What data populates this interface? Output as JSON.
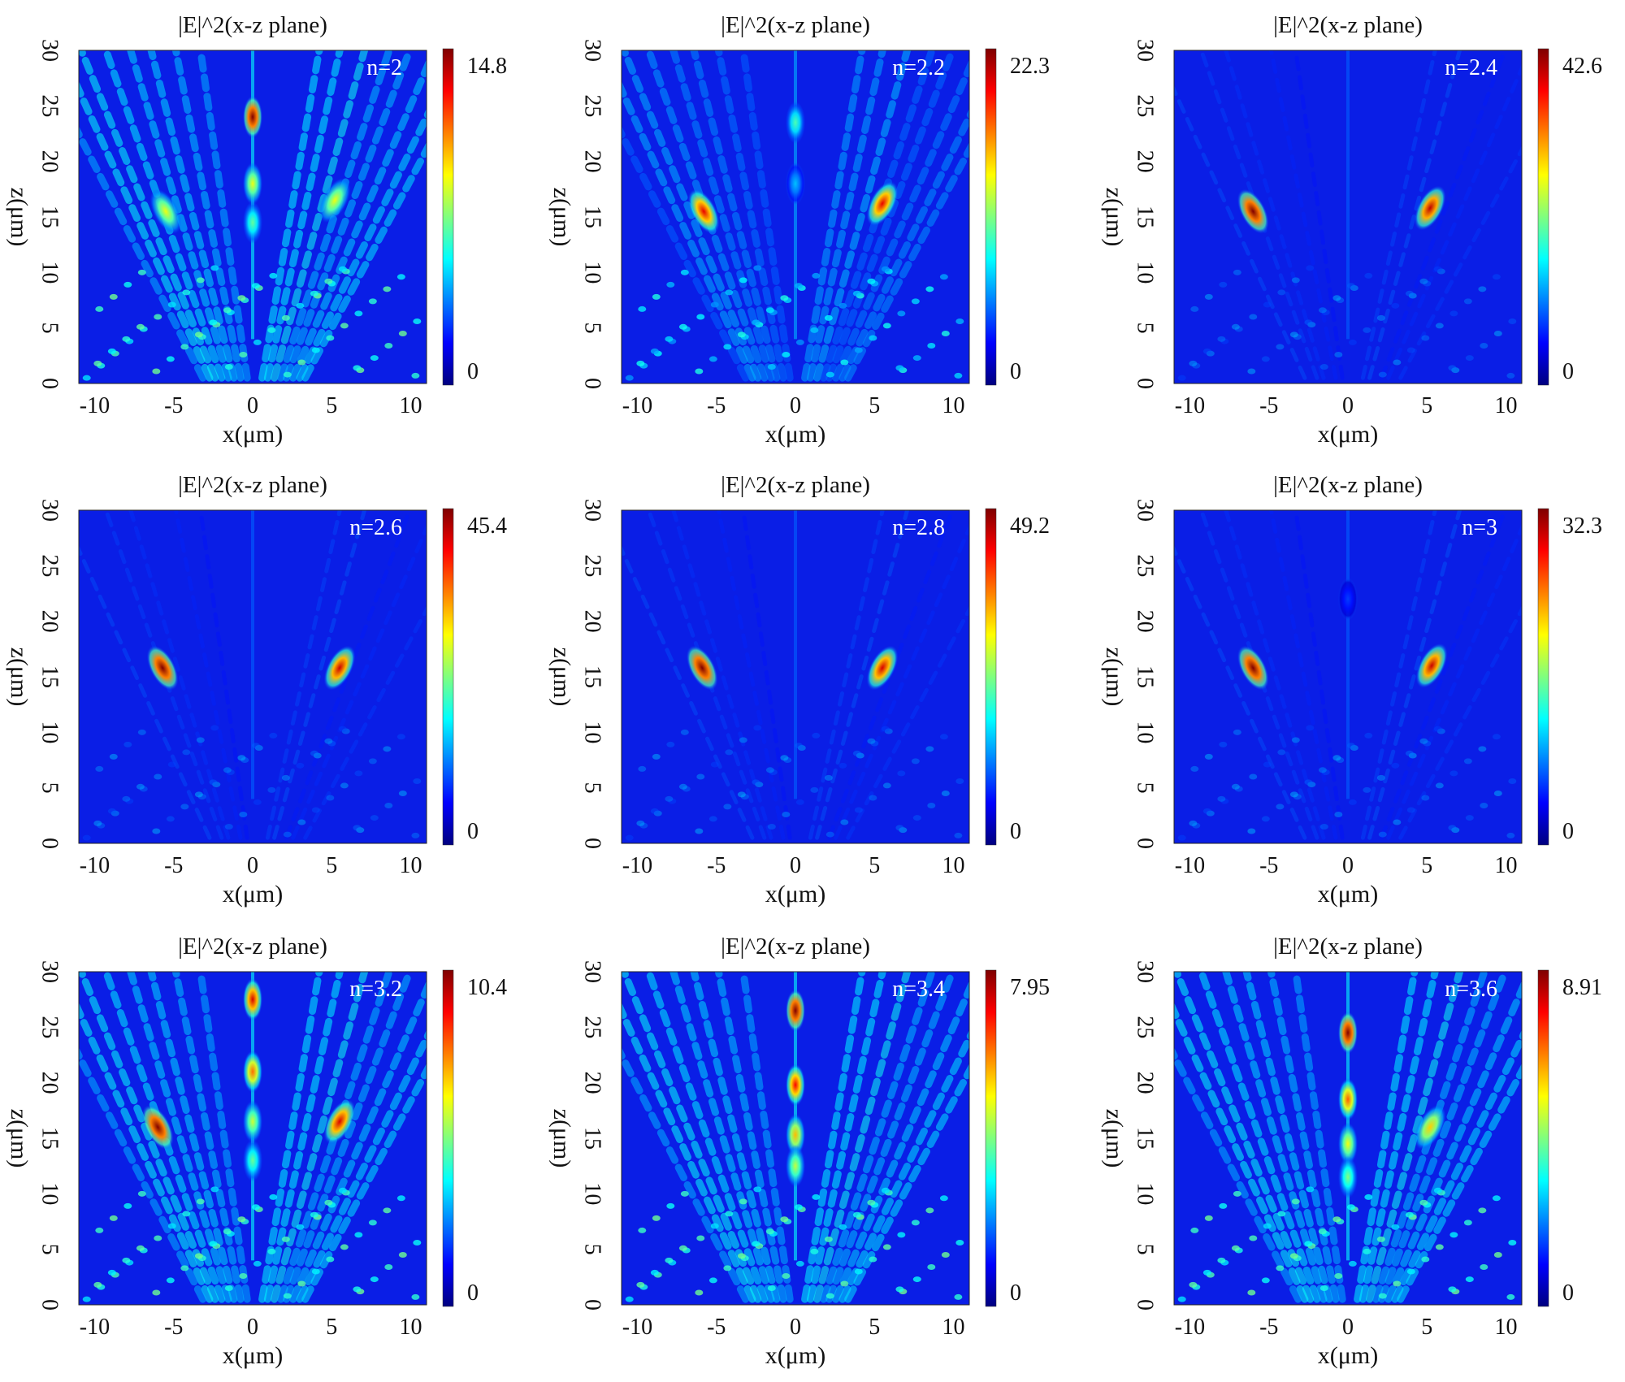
{
  "figure": {
    "colormap": "jet",
    "colormap_stops": [
      "#00007f",
      "#0000ff",
      "#007fff",
      "#00ffff",
      "#7fff7f",
      "#ffff00",
      "#ff7f00",
      "#ff0000",
      "#7f0000"
    ]
  },
  "chart_data": [
    {
      "type": "heatmap",
      "title": "|E|^2(x-z plane)",
      "annotation": "n=2",
      "xlabel": "x(μm)",
      "ylabel": "z(μm)",
      "xlim": [
        -11,
        11
      ],
      "ylim": [
        0,
        30
      ],
      "xticks": [
        "-10",
        "-5",
        "0",
        "5",
        "10"
      ],
      "yticks": [
        "0",
        "5",
        "10",
        "15",
        "20",
        "25",
        "30"
      ],
      "colorbar": {
        "min": "0",
        "max": "14.8",
        "min_value": 0,
        "max_value": 14.8
      },
      "hotspots": [
        {
          "x": 0,
          "z": 24,
          "value": 14.8
        },
        {
          "x": 0,
          "z": 18,
          "value": 9
        },
        {
          "x": 0,
          "z": 14.5,
          "value": 7
        },
        {
          "x": -5.5,
          "z": 15.5,
          "value": 9
        },
        {
          "x": 5.2,
          "z": 16.5,
          "value": 9
        }
      ],
      "background": "strong"
    },
    {
      "type": "heatmap",
      "title": "|E|^2(x-z plane)",
      "annotation": "n=2.2",
      "xlabel": "x(μm)",
      "ylabel": "z(μm)",
      "xlim": [
        -11,
        11
      ],
      "ylim": [
        0,
        30
      ],
      "xticks": [
        "-10",
        "-5",
        "0",
        "5",
        "10"
      ],
      "yticks": [
        "0",
        "5",
        "10",
        "15",
        "20",
        "25",
        "30"
      ],
      "colorbar": {
        "min": "0",
        "max": "22.3",
        "min_value": 0,
        "max_value": 22.3
      },
      "hotspots": [
        {
          "x": -5.8,
          "z": 15.5,
          "value": 20
        },
        {
          "x": 5.5,
          "z": 16.2,
          "value": 20
        },
        {
          "x": 0,
          "z": 23.5,
          "value": 10
        },
        {
          "x": 0,
          "z": 18,
          "value": 7
        }
      ],
      "background": "medium"
    },
    {
      "type": "heatmap",
      "title": "|E|^2(x-z plane)",
      "annotation": "n=2.4",
      "xlabel": "x(μm)",
      "ylabel": "z(μm)",
      "xlim": [
        -11,
        11
      ],
      "ylim": [
        0,
        30
      ],
      "xticks": [
        "-10",
        "-5",
        "0",
        "5",
        "10"
      ],
      "yticks": [
        "0",
        "5",
        "10",
        "15",
        "20",
        "25",
        "30"
      ],
      "colorbar": {
        "min": "0",
        "max": "42.6",
        "min_value": 0,
        "max_value": 42.6
      },
      "hotspots": [
        {
          "x": -6,
          "z": 15.5,
          "value": 42.6
        },
        {
          "x": 5.2,
          "z": 15.8,
          "value": 40
        }
      ],
      "background": "weak"
    },
    {
      "type": "heatmap",
      "title": "|E|^2(x-z plane)",
      "annotation": "n=2.6",
      "xlabel": "x(μm)",
      "ylabel": "z(μm)",
      "xlim": [
        -11,
        11
      ],
      "ylim": [
        0,
        30
      ],
      "xticks": [
        "-10",
        "-5",
        "0",
        "5",
        "10"
      ],
      "yticks": [
        "0",
        "5",
        "10",
        "15",
        "20",
        "25",
        "30"
      ],
      "colorbar": {
        "min": "0",
        "max": "45.4",
        "min_value": 0,
        "max_value": 45.4
      },
      "hotspots": [
        {
          "x": -5.7,
          "z": 15.8,
          "value": 45.4
        },
        {
          "x": 5.5,
          "z": 15.8,
          "value": 42
        }
      ],
      "background": "weak"
    },
    {
      "type": "heatmap",
      "title": "|E|^2(x-z plane)",
      "annotation": "n=2.8",
      "xlabel": "x(μm)",
      "ylabel": "z(μm)",
      "xlim": [
        -11,
        11
      ],
      "ylim": [
        0,
        30
      ],
      "xticks": [
        "-10",
        "-5",
        "0",
        "5",
        "10"
      ],
      "yticks": [
        "0",
        "5",
        "10",
        "15",
        "20",
        "25",
        "30"
      ],
      "colorbar": {
        "min": "0",
        "max": "49.2",
        "min_value": 0,
        "max_value": 49.2
      },
      "hotspots": [
        {
          "x": -5.9,
          "z": 15.8,
          "value": 49.2
        },
        {
          "x": 5.5,
          "z": 15.8,
          "value": 45
        }
      ],
      "background": "weak"
    },
    {
      "type": "heatmap",
      "title": "|E|^2(x-z plane)",
      "annotation": "n=3",
      "xlabel": "x(μm)",
      "ylabel": "z(μm)",
      "xlim": [
        -11,
        11
      ],
      "ylim": [
        0,
        30
      ],
      "xticks": [
        "-10",
        "-5",
        "0",
        "5",
        "10"
      ],
      "yticks": [
        "0",
        "5",
        "10",
        "15",
        "20",
        "25",
        "30"
      ],
      "colorbar": {
        "min": "0",
        "max": "32.3",
        "min_value": 0,
        "max_value": 32.3
      },
      "hotspots": [
        {
          "x": -6,
          "z": 15.8,
          "value": 32.3
        },
        {
          "x": 5.3,
          "z": 16,
          "value": 30
        },
        {
          "x": 0,
          "z": 22,
          "value": 6
        }
      ],
      "background": "weak"
    },
    {
      "type": "heatmap",
      "title": "|E|^2(x-z plane)",
      "annotation": "n=3.2",
      "xlabel": "x(μm)",
      "ylabel": "z(μm)",
      "xlim": [
        -11,
        11
      ],
      "ylim": [
        0,
        30
      ],
      "xticks": [
        "-10",
        "-5",
        "0",
        "5",
        "10"
      ],
      "yticks": [
        "0",
        "5",
        "10",
        "15",
        "20",
        "25",
        "30"
      ],
      "colorbar": {
        "min": "0",
        "max": "10.4",
        "min_value": 0,
        "max_value": 10.4
      },
      "hotspots": [
        {
          "x": -6,
          "z": 16,
          "value": 10.4
        },
        {
          "x": 5.5,
          "z": 16.5,
          "value": 9.5
        },
        {
          "x": 0,
          "z": 27.5,
          "value": 9.5
        },
        {
          "x": 0,
          "z": 21,
          "value": 8
        },
        {
          "x": 0,
          "z": 16.5,
          "value": 6
        },
        {
          "x": 0,
          "z": 13,
          "value": 5
        }
      ],
      "background": "strong"
    },
    {
      "type": "heatmap",
      "title": "|E|^2(x-z plane)",
      "annotation": "n=3.4",
      "xlabel": "x(μm)",
      "ylabel": "z(μm)",
      "xlim": [
        -11,
        11
      ],
      "ylim": [
        0,
        30
      ],
      "xticks": [
        "-10",
        "-5",
        "0",
        "5",
        "10"
      ],
      "yticks": [
        "0",
        "5",
        "10",
        "15",
        "20",
        "25",
        "30"
      ],
      "colorbar": {
        "min": "0",
        "max": "7.95",
        "min_value": 0,
        "max_value": 7.95
      },
      "hotspots": [
        {
          "x": 0,
          "z": 26.5,
          "value": 7.95
        },
        {
          "x": 0,
          "z": 19.8,
          "value": 7
        },
        {
          "x": 0,
          "z": 15.3,
          "value": 5.5
        },
        {
          "x": 0,
          "z": 12.5,
          "value": 4.5
        }
      ],
      "background": "strong"
    },
    {
      "type": "heatmap",
      "title": "|E|^2(x-z plane)",
      "annotation": "n=3.6",
      "xlabel": "x(μm)",
      "ylabel": "z(μm)",
      "xlim": [
        -11,
        11
      ],
      "ylim": [
        0,
        30
      ],
      "xticks": [
        "-10",
        "-5",
        "0",
        "5",
        "10"
      ],
      "yticks": [
        "0",
        "5",
        "10",
        "15",
        "20",
        "25",
        "30"
      ],
      "colorbar": {
        "min": "0",
        "max": "8.91",
        "min_value": 0,
        "max_value": 8.91
      },
      "hotspots": [
        {
          "x": 0,
          "z": 24.5,
          "value": 8.91
        },
        {
          "x": 0,
          "z": 18.5,
          "value": 7
        },
        {
          "x": 0,
          "z": 14.5,
          "value": 5.5
        },
        {
          "x": 5.2,
          "z": 16,
          "value": 6
        },
        {
          "x": 0,
          "z": 11.5,
          "value": 4.5
        }
      ],
      "background": "strong"
    }
  ]
}
